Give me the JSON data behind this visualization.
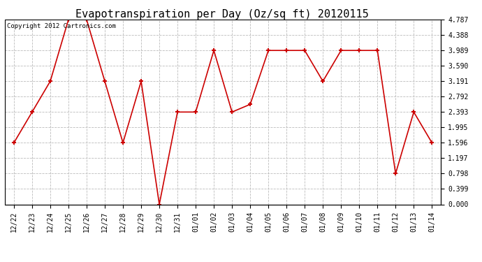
{
  "title": "Evapotranspiration per Day (Oz/sq ft) 20120115",
  "copyright_text": "Copyright 2012 Cartronics.com",
  "x_labels": [
    "12/22",
    "12/23",
    "12/24",
    "12/25",
    "12/26",
    "12/27",
    "12/28",
    "12/29",
    "12/30",
    "12/31",
    "01/01",
    "01/02",
    "01/03",
    "01/04",
    "01/05",
    "01/06",
    "01/07",
    "01/08",
    "01/09",
    "01/10",
    "01/11",
    "01/12",
    "01/13",
    "01/14"
  ],
  "y_values": [
    1.596,
    2.393,
    3.191,
    4.787,
    4.787,
    3.191,
    1.596,
    3.191,
    0.0,
    2.393,
    2.393,
    3.989,
    2.393,
    2.592,
    3.989,
    3.989,
    3.989,
    3.191,
    3.989,
    3.989,
    3.989,
    0.798,
    2.393,
    1.596
  ],
  "line_color": "#cc0000",
  "marker": "+",
  "marker_size": 5,
  "marker_linewidth": 1.5,
  "line_width": 1.2,
  "y_ticks": [
    0.0,
    0.399,
    0.798,
    1.197,
    1.596,
    1.995,
    2.393,
    2.792,
    3.191,
    3.59,
    3.989,
    4.388,
    4.787
  ],
  "ylim": [
    0.0,
    4.787
  ],
  "background_color": "#ffffff",
  "grid_color": "#bbbbbb",
  "title_fontsize": 11,
  "copyright_fontsize": 6.5,
  "tick_fontsize": 7
}
